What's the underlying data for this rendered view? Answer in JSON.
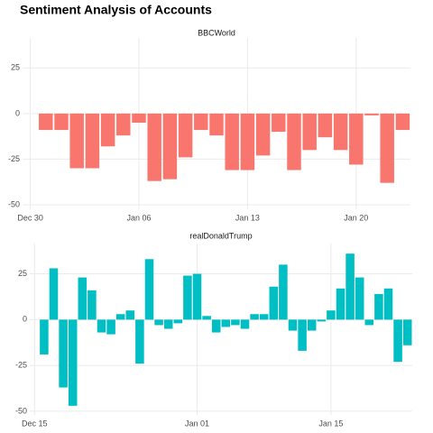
{
  "title": "Sentiment Analysis of Accounts",
  "chart_data": [
    {
      "type": "bar",
      "title": "BBCWorld",
      "color": "#F8766D",
      "categories": [
        "Dec 30",
        null,
        null,
        null,
        null,
        null,
        null,
        "Jan 06",
        null,
        null,
        null,
        null,
        null,
        null,
        "Jan 13",
        null,
        null,
        null,
        null,
        null,
        null,
        "Jan 20",
        null,
        null,
        null
      ],
      "values": [
        null,
        -9,
        -9,
        -30,
        -30,
        -18,
        -12,
        -5,
        -37,
        -36,
        -24,
        -9,
        -12,
        -31,
        -31,
        -23,
        -10,
        -31,
        -20,
        -13,
        -20,
        -28,
        -1,
        -38,
        -9
      ],
      "ylim": [
        -52.5,
        41.5
      ],
      "yticks": [
        -50,
        -25,
        0,
        25
      ],
      "grid": true
    },
    {
      "type": "bar",
      "title": "realDonaldTrump",
      "color": "#00BFC4",
      "categories": [
        "Dec 15",
        null,
        null,
        null,
        null,
        null,
        null,
        null,
        null,
        null,
        null,
        null,
        null,
        null,
        null,
        null,
        null,
        "Jan 01",
        null,
        null,
        null,
        null,
        null,
        null,
        null,
        null,
        null,
        null,
        null,
        null,
        null,
        "Jan 15",
        null,
        null,
        null,
        null,
        null,
        null,
        null,
        null
      ],
      "values": [
        null,
        -19,
        28,
        -37,
        -47,
        23,
        16,
        -7,
        -8,
        3,
        5,
        -24,
        33,
        -3,
        -5,
        -2,
        24,
        25,
        2,
        -7,
        -4,
        -3,
        -5,
        3,
        3,
        18,
        30,
        -6,
        -17,
        -6,
        -1,
        5,
        17,
        36,
        23,
        -3,
        14,
        17,
        -23,
        -14
      ],
      "ylim": [
        -52,
        41.5
      ],
      "yticks": [
        -50,
        -25,
        0,
        25
      ],
      "grid": true
    }
  ]
}
